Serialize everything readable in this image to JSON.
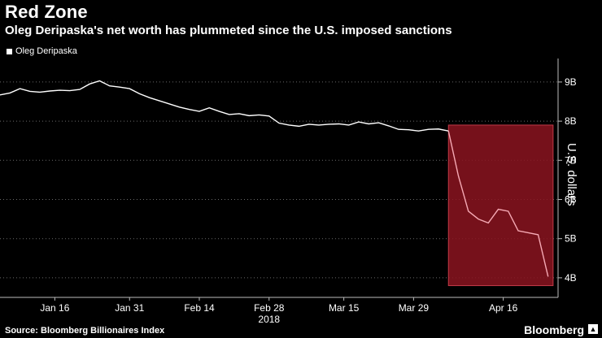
{
  "header": {
    "title": "Red Zone",
    "subtitle": "Oleg Deripaska's net worth has plummeted since the U.S. imposed sanctions"
  },
  "legend": {
    "label": "Oleg Deripaska"
  },
  "footer": {
    "source": "Source: Bloomberg Billionaires Index",
    "brand": "Bloomberg"
  },
  "chart_data": {
    "type": "line",
    "title": "Red Zone",
    "subtitle": "Oleg Deripaska's net worth has plummeted since the U.S. imposed sanctions",
    "ylabel": "U.S. dollars",
    "ylim": [
      3.5,
      9.6
    ],
    "y_axis_position": "right",
    "yticks": [
      4,
      5,
      6,
      7,
      8,
      9
    ],
    "ytick_labels": [
      "4B",
      "5B",
      "6B",
      "7B",
      "8B",
      "9B"
    ],
    "xlim": [
      "2018-01-05",
      "2018-04-27"
    ],
    "xticks": [
      "2018-01-16",
      "2018-01-31",
      "2018-02-14",
      "2018-02-28",
      "2018-03-15",
      "2018-03-29",
      "2018-04-16"
    ],
    "xtick_labels": [
      "Jan 16",
      "Jan 31",
      "Feb 14",
      "Feb 28",
      "Mar 15",
      "Mar 29",
      "Apr 16"
    ],
    "xaxis_year_label": "2018",
    "grid": "horizontal-dotted",
    "legend_position": "top-left",
    "highlight": {
      "x": [
        "2018-04-05",
        "2018-04-26"
      ],
      "y": [
        3.8,
        7.9
      ],
      "color": "#8b1420"
    },
    "series": [
      {
        "name": "Oleg Deripaska",
        "color": "#ffffff",
        "highlight_color": "#f5a9b4",
        "x": [
          "2018-01-05",
          "2018-01-07",
          "2018-01-09",
          "2018-01-11",
          "2018-01-13",
          "2018-01-15",
          "2018-01-17",
          "2018-01-19",
          "2018-01-21",
          "2018-01-23",
          "2018-01-25",
          "2018-01-27",
          "2018-01-29",
          "2018-01-31",
          "2018-02-02",
          "2018-02-04",
          "2018-02-06",
          "2018-02-08",
          "2018-02-10",
          "2018-02-12",
          "2018-02-14",
          "2018-02-16",
          "2018-02-18",
          "2018-02-20",
          "2018-02-22",
          "2018-02-24",
          "2018-02-26",
          "2018-02-28",
          "2018-03-02",
          "2018-03-04",
          "2018-03-06",
          "2018-03-08",
          "2018-03-10",
          "2018-03-12",
          "2018-03-14",
          "2018-03-16",
          "2018-03-18",
          "2018-03-20",
          "2018-03-22",
          "2018-03-24",
          "2018-03-26",
          "2018-03-28",
          "2018-03-30",
          "2018-04-01",
          "2018-04-03",
          "2018-04-05",
          "2018-04-07",
          "2018-04-09",
          "2018-04-11",
          "2018-04-13",
          "2018-04-15",
          "2018-04-17",
          "2018-04-19",
          "2018-04-21",
          "2018-04-23",
          "2018-04-25"
        ],
        "values": [
          8.67,
          8.72,
          8.83,
          8.76,
          8.74,
          8.77,
          8.79,
          8.78,
          8.81,
          8.95,
          9.03,
          8.9,
          8.87,
          8.83,
          8.7,
          8.6,
          8.52,
          8.44,
          8.36,
          8.3,
          8.25,
          8.34,
          8.25,
          8.17,
          8.19,
          8.14,
          8.16,
          8.13,
          7.95,
          7.9,
          7.87,
          7.92,
          7.9,
          7.92,
          7.93,
          7.9,
          7.98,
          7.93,
          7.96,
          7.88,
          7.79,
          7.78,
          7.75,
          7.79,
          7.8,
          7.75,
          6.6,
          5.7,
          5.5,
          5.4,
          5.75,
          5.7,
          5.2,
          5.15,
          5.1,
          4.03
        ]
      }
    ]
  }
}
